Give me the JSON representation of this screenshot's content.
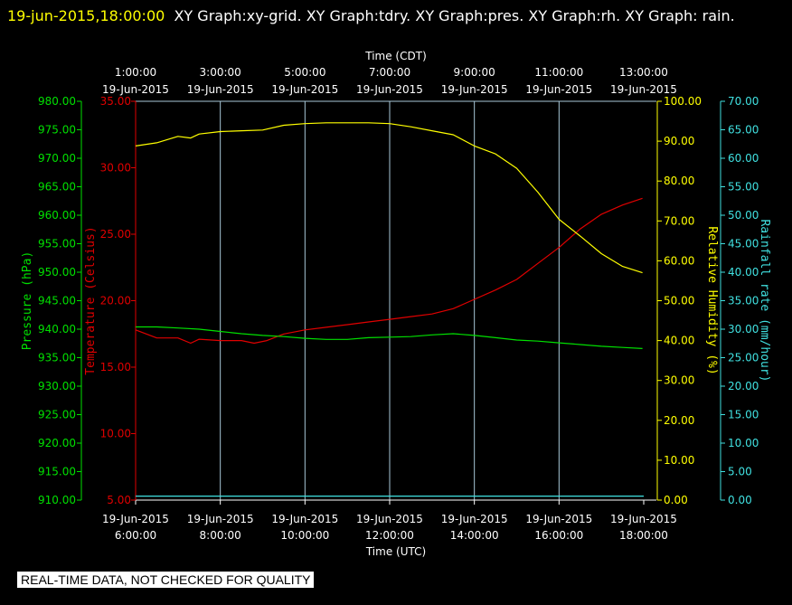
{
  "header": {
    "timestamp": "19-jun-2015,18:00:00",
    "titles": "XY Graph:xy-grid.  XY Graph:tdry.  XY Graph:pres.  XY Graph:rh.  XY Graph: rain."
  },
  "notice": "REAL-TIME DATA, NOT CHECKED FOR QUALITY",
  "colors": {
    "background": "#000000",
    "grid": "#a8c8d8",
    "temperature": "#e00000",
    "pressure": "#00e000",
    "humidity": "#ffff00",
    "rain": "#40e0e0",
    "text": "#ffffff"
  },
  "chart_data": {
    "type": "line",
    "xlabel_bottom": "Time (UTC)",
    "xlabel_top": "Time (CDT)",
    "x_ticks_bottom": [
      {
        "date": "19-Jun-2015",
        "time": "6:00:00"
      },
      {
        "date": "19-Jun-2015",
        "time": "8:00:00"
      },
      {
        "date": "19-Jun-2015",
        "time": "10:00:00"
      },
      {
        "date": "19-Jun-2015",
        "time": "12:00:00"
      },
      {
        "date": "19-Jun-2015",
        "time": "14:00:00"
      },
      {
        "date": "19-Jun-2015",
        "time": "16:00:00"
      },
      {
        "date": "19-Jun-2015",
        "time": "18:00:00"
      }
    ],
    "x_ticks_top": [
      {
        "time": "1:00:00",
        "date": "19-Jun-2015"
      },
      {
        "time": "3:00:00",
        "date": "19-Jun-2015"
      },
      {
        "time": "5:00:00",
        "date": "19-Jun-2015"
      },
      {
        "time": "7:00:00",
        "date": "19-Jun-2015"
      },
      {
        "time": "9:00:00",
        "date": "19-Jun-2015"
      },
      {
        "time": "11:00:00",
        "date": "19-Jun-2015"
      },
      {
        "time": "13:00:00",
        "date": "19-Jun-2015"
      }
    ],
    "x_range_utc_hours": [
      6,
      18
    ],
    "grid": true,
    "axes": {
      "pressure": {
        "label": "Pressure (hPa)",
        "range": [
          910,
          980
        ],
        "step": 5,
        "decimals": 2,
        "side": "left-outer"
      },
      "temperature": {
        "label": "Temperature (Celsius)",
        "range": [
          5,
          35
        ],
        "step": 5,
        "decimals": 2,
        "side": "left-inner"
      },
      "humidity": {
        "label": "Relative Humidity (%)",
        "range": [
          0,
          100
        ],
        "step": 10,
        "decimals": 2,
        "side": "right-inner"
      },
      "rain": {
        "label": "Rainfall rate (mm/hour)",
        "range": [
          0,
          70
        ],
        "step": 5,
        "decimals": 2,
        "side": "right-outer"
      }
    },
    "series": [
      {
        "name": "Temperature (Celsius)",
        "axis": "temperature",
        "points": [
          [
            6.0,
            17.8
          ],
          [
            6.5,
            17.2
          ],
          [
            7.0,
            17.2
          ],
          [
            7.3,
            16.8
          ],
          [
            7.5,
            17.1
          ],
          [
            8.0,
            17.0
          ],
          [
            8.5,
            17.0
          ],
          [
            8.8,
            16.8
          ],
          [
            9.1,
            17.0
          ],
          [
            9.5,
            17.5
          ],
          [
            10.0,
            17.8
          ],
          [
            10.5,
            18.0
          ],
          [
            11.0,
            18.2
          ],
          [
            11.5,
            18.4
          ],
          [
            12.0,
            18.6
          ],
          [
            12.5,
            18.8
          ],
          [
            13.0,
            19.0
          ],
          [
            13.5,
            19.4
          ],
          [
            14.0,
            20.1
          ],
          [
            14.5,
            20.8
          ],
          [
            15.0,
            21.6
          ],
          [
            15.5,
            22.8
          ],
          [
            16.0,
            24.0
          ],
          [
            16.5,
            25.4
          ],
          [
            17.0,
            26.5
          ],
          [
            17.5,
            27.2
          ],
          [
            17.97,
            27.7
          ]
        ]
      },
      {
        "name": "Pressure (hPa)",
        "axis": "pressure",
        "points": [
          [
            6.0,
            940.4
          ],
          [
            6.5,
            940.4
          ],
          [
            7.0,
            940.2
          ],
          [
            7.5,
            940.0
          ],
          [
            8.0,
            939.6
          ],
          [
            8.5,
            939.2
          ],
          [
            9.0,
            938.9
          ],
          [
            9.5,
            938.7
          ],
          [
            10.0,
            938.4
          ],
          [
            10.5,
            938.2
          ],
          [
            11.0,
            938.2
          ],
          [
            11.5,
            938.5
          ],
          [
            12.0,
            938.6
          ],
          [
            12.5,
            938.7
          ],
          [
            13.0,
            939.0
          ],
          [
            13.5,
            939.2
          ],
          [
            14.0,
            938.9
          ],
          [
            14.5,
            938.5
          ],
          [
            15.0,
            938.1
          ],
          [
            15.5,
            937.9
          ],
          [
            16.0,
            937.6
          ],
          [
            16.5,
            937.3
          ],
          [
            17.0,
            937.0
          ],
          [
            17.5,
            936.8
          ],
          [
            17.97,
            936.6
          ]
        ]
      },
      {
        "name": "Relative Humidity (%)",
        "axis": "humidity",
        "points": [
          [
            6.0,
            88.8
          ],
          [
            6.5,
            89.6
          ],
          [
            7.0,
            91.2
          ],
          [
            7.3,
            90.8
          ],
          [
            7.5,
            91.8
          ],
          [
            8.0,
            92.4
          ],
          [
            8.5,
            92.6
          ],
          [
            9.0,
            92.8
          ],
          [
            9.5,
            94.0
          ],
          [
            10.0,
            94.4
          ],
          [
            10.5,
            94.6
          ],
          [
            11.0,
            94.6
          ],
          [
            11.5,
            94.6
          ],
          [
            12.0,
            94.4
          ],
          [
            12.5,
            93.6
          ],
          [
            13.0,
            92.6
          ],
          [
            13.5,
            91.6
          ],
          [
            14.0,
            88.8
          ],
          [
            14.5,
            86.8
          ],
          [
            15.0,
            83.2
          ],
          [
            15.5,
            77.2
          ],
          [
            16.0,
            70.4
          ],
          [
            16.5,
            66.2
          ],
          [
            17.0,
            61.8
          ],
          [
            17.5,
            58.6
          ],
          [
            17.97,
            57.0
          ]
        ]
      },
      {
        "name": "Rainfall rate (mm/hour)",
        "axis": "rain",
        "points": [
          [
            6.0,
            0.7
          ],
          [
            18.0,
            0.7
          ]
        ]
      }
    ]
  }
}
